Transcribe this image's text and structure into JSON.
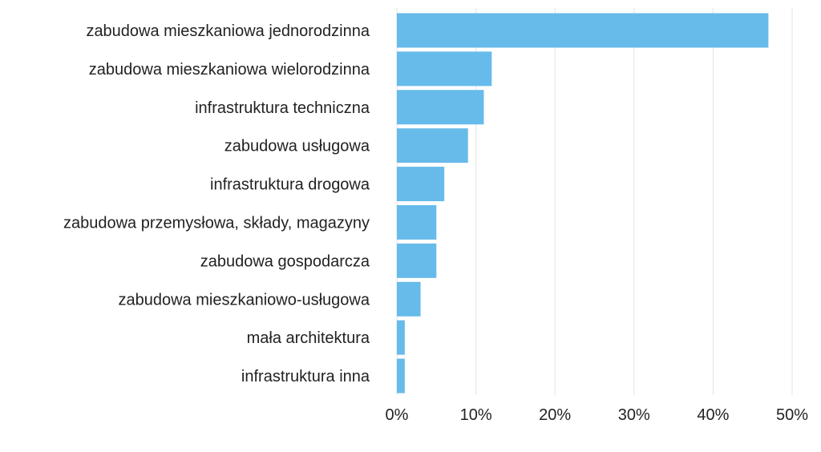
{
  "chart_data": {
    "type": "bar",
    "orientation": "horizontal",
    "categories": [
      "zabudowa mieszkaniowa jednorodzinna",
      "zabudowa mieszkaniowa wielorodzinna",
      "infrastruktura techniczna",
      "zabudowa usługowa",
      "infrastruktura drogowa",
      "zabudowa przemysłowa, składy, magazyny",
      "zabudowa gospodarcza",
      "zabudowa mieszkaniowo-usługowa",
      "mała architektura",
      "infrastruktura inna"
    ],
    "values": [
      47,
      12,
      11,
      9,
      6,
      5,
      5,
      3,
      1,
      1
    ],
    "xlim": [
      0,
      50
    ],
    "x_ticks": [
      0,
      10,
      20,
      30,
      40,
      50
    ],
    "tick_labels": [
      "0%",
      "10%",
      "20%",
      "30%",
      "40%",
      "50%"
    ],
    "title": "",
    "xlabel": "",
    "ylabel": "",
    "grid": true,
    "bar_color": "#67bbea",
    "grid_color": "#e3e3e3"
  }
}
